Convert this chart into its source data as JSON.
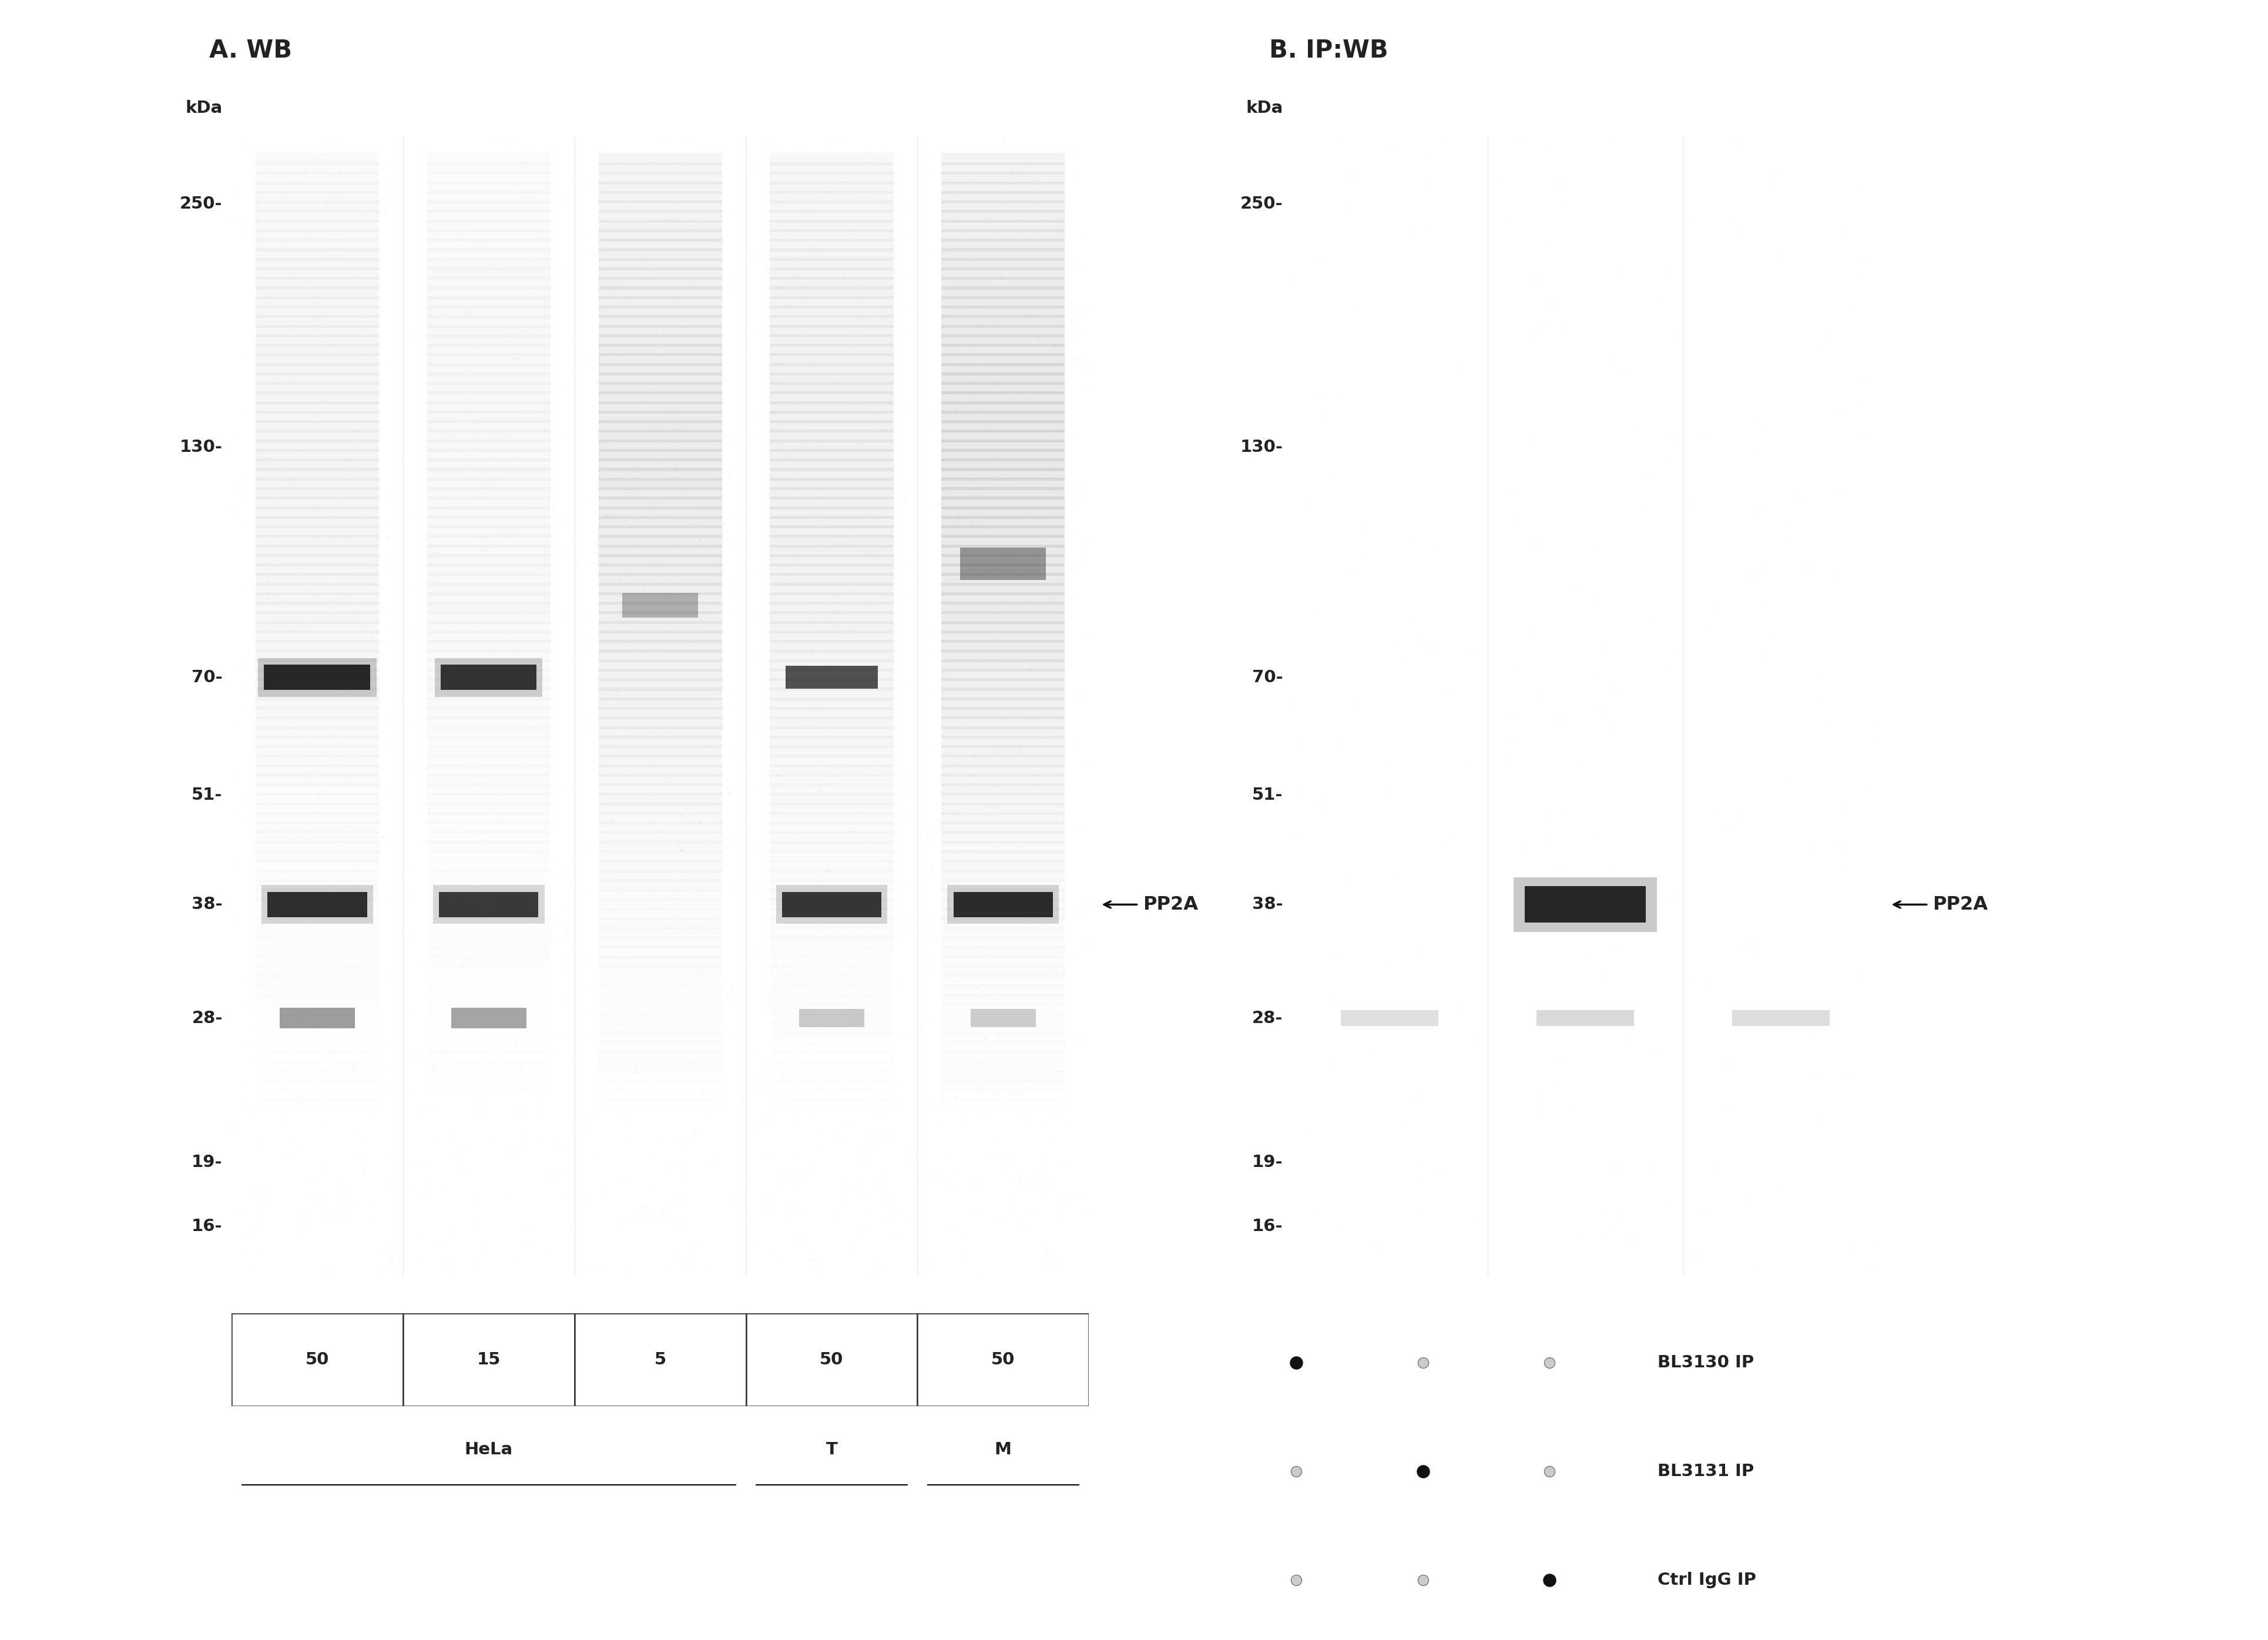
{
  "panel_A_title": "A. WB",
  "panel_B_title": "B. IP:WB",
  "kda_label": "kDa",
  "marker_positions": [
    250,
    130,
    70,
    51,
    38,
    28,
    19,
    16
  ],
  "marker_labels": [
    "250-",
    "130-",
    "70-",
    "51-",
    "38-",
    "28-",
    "19-",
    "16-"
  ],
  "panel_A_bg_color": "#cccccc",
  "panel_B_bg_color": "#d4d4d4",
  "white_bg": "#ffffff",
  "band_color_dark": "#111111",
  "band_color_medium": "#444444",
  "band_color_light": "#888888",
  "arrow_color": "#111111",
  "PP2A_label": "PP2A",
  "panel_A_lanes": 5,
  "panel_B_lanes": 3,
  "lane_labels_A": [
    "50",
    "15",
    "5",
    "50",
    "50"
  ],
  "group_labels_A": [
    "HeLa",
    "T",
    "M"
  ],
  "legend_rows": [
    {
      "dots": [
        true,
        false,
        false
      ],
      "label": "BL3130 IP"
    },
    {
      "dots": [
        false,
        true,
        false
      ],
      "label": "BL3131 IP"
    },
    {
      "dots": [
        false,
        false,
        true
      ],
      "label": "Ctrl IgG IP"
    }
  ]
}
